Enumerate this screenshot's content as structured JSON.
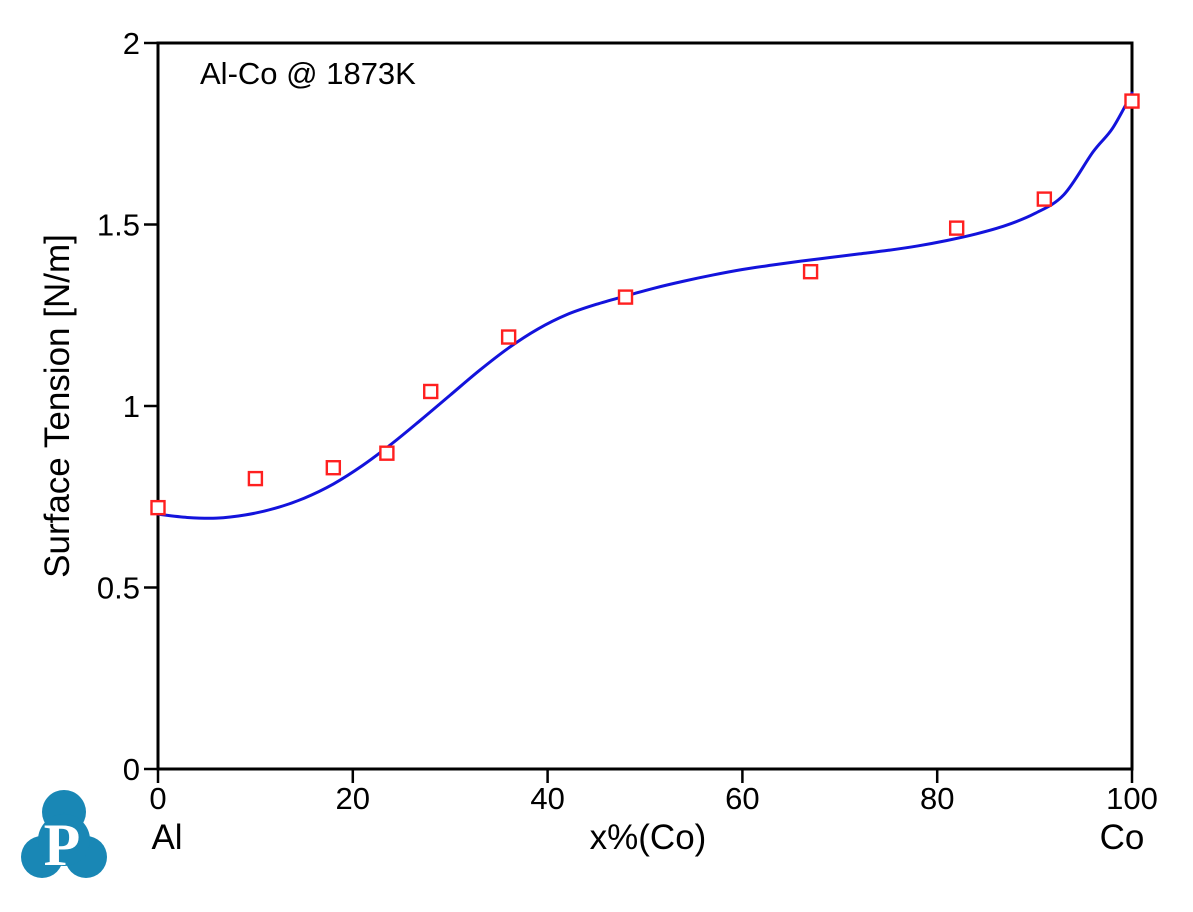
{
  "page": {
    "background": "#ffffff"
  },
  "chart_data": {
    "type": "line+scatter",
    "annotation": "Al-Co @ 1873K",
    "xlabel": "x%(Co)",
    "x_left_endpoint_label": "Al",
    "x_right_endpoint_label": "Co",
    "ylabel": "Surface Tension [N/m]",
    "xlim": [
      0,
      100
    ],
    "ylim": [
      0,
      2
    ],
    "x_ticks": [
      0,
      20,
      40,
      60,
      80,
      100
    ],
    "y_ticks": [
      0,
      0.5,
      1,
      1.5,
      2
    ],
    "grid": false,
    "legend": "none",
    "axis_color": "#000000",
    "series": [
      {
        "name": "calculated-surface-tension-curve",
        "type": "line",
        "color": "#1313dc",
        "width": 3,
        "points": [
          [
            0,
            0.702
          ],
          [
            3,
            0.693
          ],
          [
            6,
            0.691
          ],
          [
            9,
            0.7
          ],
          [
            12,
            0.718
          ],
          [
            15,
            0.746
          ],
          [
            18,
            0.785
          ],
          [
            21,
            0.836
          ],
          [
            24,
            0.896
          ],
          [
            27,
            0.962
          ],
          [
            30,
            1.03
          ],
          [
            33,
            1.098
          ],
          [
            36,
            1.16
          ],
          [
            39,
            1.212
          ],
          [
            42,
            1.252
          ],
          [
            45,
            1.28
          ],
          [
            48,
            1.303
          ],
          [
            51,
            1.325
          ],
          [
            54,
            1.344
          ],
          [
            57,
            1.361
          ],
          [
            60,
            1.376
          ],
          [
            63,
            1.388
          ],
          [
            66,
            1.399
          ],
          [
            69,
            1.409
          ],
          [
            72,
            1.419
          ],
          [
            75,
            1.429
          ],
          [
            78,
            1.441
          ],
          [
            81,
            1.456
          ],
          [
            84,
            1.474
          ],
          [
            87,
            1.497
          ],
          [
            90,
            1.53
          ],
          [
            93,
            1.582
          ],
          [
            96,
            1.7
          ],
          [
            98,
            1.765
          ],
          [
            100,
            1.862
          ]
        ]
      },
      {
        "name": "experimental-data-points",
        "type": "scatter",
        "marker": "open-square",
        "color": "#ff2020",
        "marker_size": 13,
        "points": [
          [
            0,
            0.72
          ],
          [
            10,
            0.8
          ],
          [
            18,
            0.83
          ],
          [
            23.5,
            0.87
          ],
          [
            28,
            1.04
          ],
          [
            36,
            1.19
          ],
          [
            48,
            1.3
          ],
          [
            67,
            1.37
          ],
          [
            82,
            1.49
          ],
          [
            91,
            1.57
          ],
          [
            100,
            1.84
          ]
        ]
      }
    ]
  },
  "logo": {
    "letter": "P",
    "color": "#1987b5"
  }
}
